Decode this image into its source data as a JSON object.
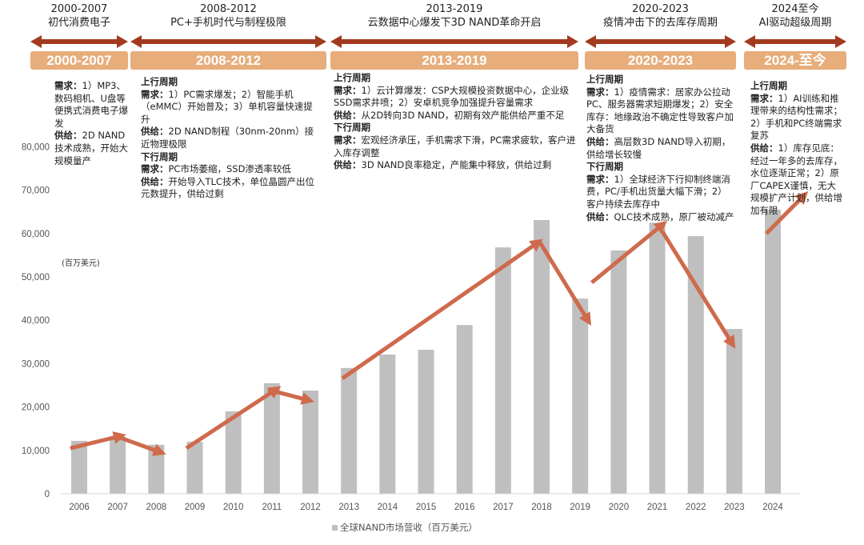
{
  "periods": [
    {
      "year": "2000-2007",
      "subtitle": "初代消费电子",
      "bar_label": "2000-2007"
    },
    {
      "year": "2008-2012",
      "subtitle": "PC+手机时代与制程极限",
      "bar_label": "2008-2012"
    },
    {
      "year": "2013-2019",
      "subtitle": "云数据中心爆发下3D NAND革命开启",
      "bar_label": "2013-2019"
    },
    {
      "year": "2020-2023",
      "subtitle": "疫情冲击下的去库存周期",
      "bar_label": "2020-2023"
    },
    {
      "year": "2024至今",
      "subtitle": "AI驱动超级周期",
      "bar_label": "2024-至今"
    }
  ],
  "blocks": [
    [
      {
        "label": "需求：",
        "text": "1）MP3、数码相机、U盘等便携式消费电子爆发"
      },
      {
        "label": "供给：",
        "text": "2D NAND技术成熟，开始大规模量产"
      }
    ],
    [
      {
        "heading": "上行周期"
      },
      {
        "label": "需求：",
        "text": "1）PC需求爆发；2）智能手机（eMMC）开始普及；3）单机容量快速提升"
      },
      {
        "label": "供给：",
        "text": "2D NAND制程（30nm-20nm）接近物理极限"
      },
      {
        "heading": "下行周期"
      },
      {
        "label": "需求：",
        "text": "PC市场萎缩，SSD渗透率较低"
      },
      {
        "label": "供给：",
        "text": "开始导入TLC技术，单位晶圆产出位元数提升，供给过剩"
      }
    ],
    [
      {
        "heading": "上行周期"
      },
      {
        "label": "需求：",
        "text": "1）云计算爆发：CSP大规模投资数据中心，企业级SSD需求井喷；2）安卓机竞争加强提升容量需求"
      },
      {
        "label": "供给：",
        "text": "从2D转向3D NAND，初期有效产能供给严重不足"
      },
      {
        "heading": "下行周期"
      },
      {
        "label": "需求：",
        "text": "宏观经济承压，手机需求下滑，PC需求疲软，客户进入库存调整"
      },
      {
        "label": "供给：",
        "text": "3D NAND良率稳定，产能集中释放，供给过剩"
      }
    ],
    [
      {
        "heading": "上行周期"
      },
      {
        "label": "需求：",
        "text": "1）疫情需求：居家办公拉动PC、服务器需求短期爆发；2）安全库存：地缘政治不确定性导致客户加大备货"
      },
      {
        "label": "供给：",
        "text": "高层数3D NAND导入初期，供给增长较慢"
      },
      {
        "heading": "下行周期"
      },
      {
        "label": "需求：",
        "text": "1）全球经济下行抑制终端消费，PC/手机出货量大幅下滑；2）客户持续去库存中"
      },
      {
        "label": "供给：",
        "text": "QLC技术成熟，原厂被动减产"
      }
    ],
    [
      {
        "heading": "上行周期"
      },
      {
        "label": "需求：",
        "text": "1）AI训练和推理带来的结构性需求；2）手机和PC终端需求复苏"
      },
      {
        "label": "供给：",
        "text": "1）库存见底：经过一年多的去库存，水位逐渐正常；2）原厂CAPEX谨慎，无大规模扩产计划，供给增加有限"
      }
    ]
  ],
  "colors": {
    "bar": "#bfbfbf",
    "arrow": "#cf6a4c",
    "period_arrow": "#a23a1f",
    "period_bar": "#e7ad7b"
  },
  "chart_data": {
    "type": "bar",
    "title": "",
    "xlabel": "",
    "ylabel": "(百万美元)",
    "categories": [
      "2006",
      "2007",
      "2008",
      "2009",
      "2010",
      "2011",
      "2012",
      "2013",
      "2014",
      "2015",
      "2016",
      "2017",
      "2018",
      "2019",
      "2020",
      "2021",
      "2022",
      "2023",
      "2024"
    ],
    "series": [
      {
        "name": "全球NAND市场营收（百万美元）",
        "values": [
          12200,
          13100,
          11300,
          12000,
          19000,
          25500,
          23800,
          29000,
          32100,
          33200,
          38900,
          56800,
          63100,
          45000,
          56100,
          62500,
          59400,
          38000,
          65500
        ]
      }
    ],
    "ylim": [
      0,
      80000
    ],
    "yticks": [
      "0",
      "10,000",
      "20,000",
      "30,000",
      "40,000",
      "50,000",
      "60,000",
      "70,000",
      "80,000"
    ],
    "ytick_values": [
      0,
      10000,
      20000,
      30000,
      40000,
      50000,
      60000,
      70000,
      80000
    ],
    "legend_position": "bottom",
    "grid": false,
    "trend_arrows": [
      {
        "from": [
          2005.77,
          10500
        ],
        "to": [
          2007.06,
          13300
        ]
      },
      {
        "from": [
          2006.95,
          13300
        ],
        "to": [
          2008.1,
          9600
        ]
      },
      {
        "from": [
          2008.78,
          10500
        ],
        "to": [
          2011.1,
          24000
        ]
      },
      {
        "from": [
          2010.9,
          24000
        ],
        "to": [
          2011.94,
          21600
        ]
      },
      {
        "from": [
          2012.83,
          26600
        ],
        "to": [
          2017.9,
          57900
        ]
      },
      {
        "from": [
          2017.96,
          57900
        ],
        "to": [
          2019.2,
          40000
        ]
      },
      {
        "from": [
          2019.3,
          48700
        ],
        "to": [
          2021.13,
          62000
        ]
      },
      {
        "from": [
          2021.13,
          60500
        ],
        "to": [
          2022.94,
          34700
        ]
      },
      {
        "from": [
          2023.83,
          60000
        ],
        "to": [
          2024.8,
          68700
        ]
      }
    ]
  }
}
